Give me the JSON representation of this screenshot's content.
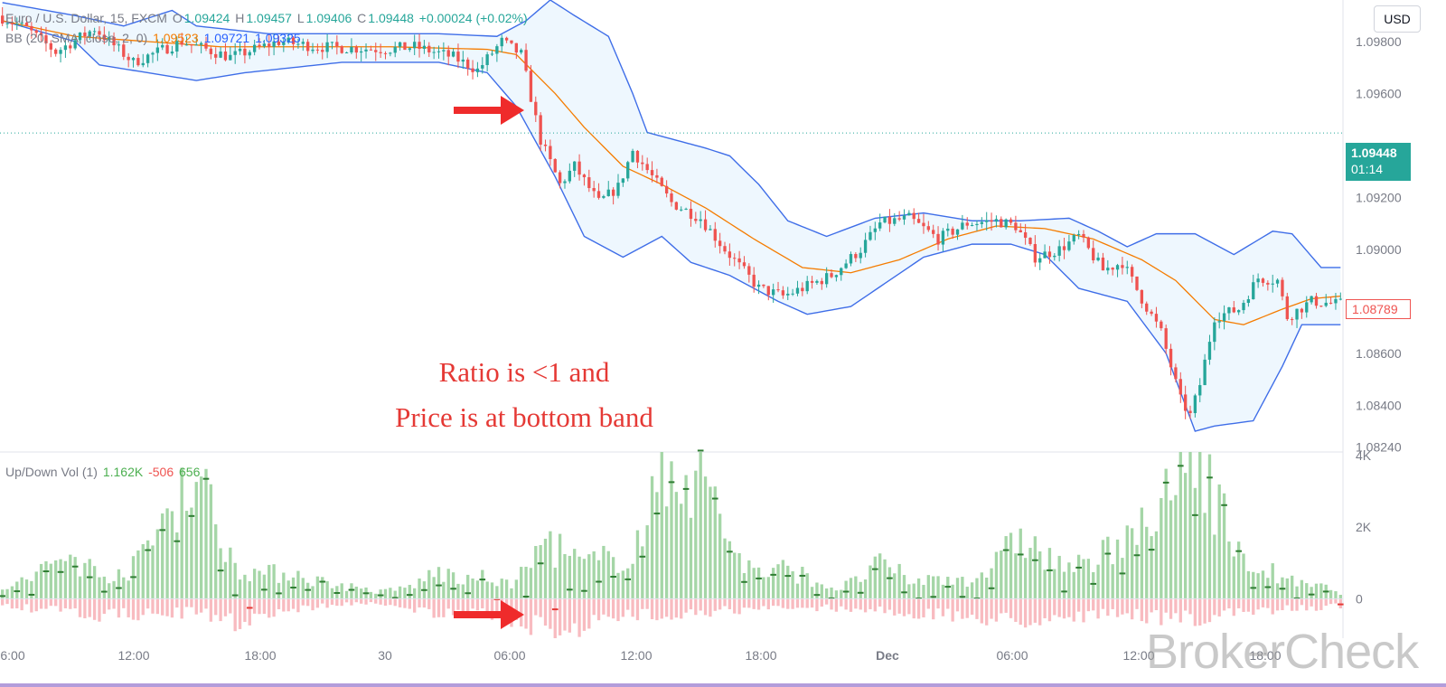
{
  "header": {
    "symbol": "Euro / U.S. Dollar, 15, FXCM",
    "o_label": "O",
    "o_val": "1.09424",
    "h_label": "H",
    "h_val": "1.09457",
    "l_label": "L",
    "l_val": "1.09406",
    "c_label": "C",
    "c_val": "1.09448",
    "change": "+0.00024 (+0.02%)",
    "bb_label": "BB (20, SMA, close, 2, 0)",
    "bb_basis": "1.09523",
    "bb_upper": "1.09721",
    "bb_lower": "1.09325"
  },
  "volume_header": {
    "label": "Up/Down Vol (1)",
    "up": "1.162K",
    "down": "-506",
    "delta": "656"
  },
  "currency_button": "USD",
  "price_tags": {
    "current_price": "1.09448",
    "countdown": "01:14",
    "last_marker": "1.08789"
  },
  "annotation": {
    "line1": "Ratio is <1 and",
    "line2": "Price is at bottom band"
  },
  "watermark": "BrokerCheck",
  "colors": {
    "up": "#26a69a",
    "down": "#ef5350",
    "bb_band": "#3f6ee8",
    "bb_basis": "#f57c00",
    "arrow": "#ef2b2b",
    "vol_up": "#a5d6a7",
    "vol_down": "#f8bbc0"
  },
  "chart_data": [
    {
      "type": "candlestick",
      "title": "Euro / U.S. Dollar, 15, FXCM",
      "y_ticks": [
        "1.09800",
        "1.09600",
        "1.09200",
        "1.09000",
        "1.08600",
        "1.08400",
        "1.08240"
      ],
      "ylim": [
        1.0822,
        1.0996
      ],
      "x_ticks": [
        "6:00",
        "12:00",
        "18:00",
        "30",
        "06:00",
        "12:00",
        "18:00",
        "Dec",
        "06:00",
        "12:00",
        "18:00"
      ],
      "price_anchors": [
        [
          0,
          1.099
        ],
        [
          6,
          1.0985
        ],
        [
          12,
          1.0976
        ],
        [
          20,
          1.0985
        ],
        [
          28,
          1.0972
        ],
        [
          38,
          1.098
        ],
        [
          48,
          1.0974
        ],
        [
          58,
          1.098
        ],
        [
          66,
          1.0978
        ],
        [
          80,
          1.0977
        ],
        [
          86,
          1.0978
        ],
        [
          94,
          1.0974
        ],
        [
          99,
          1.0969
        ],
        [
          104,
          1.098
        ],
        [
          108,
          1.0975
        ],
        [
          112,
          1.0942
        ],
        [
          116,
          1.0925
        ],
        [
          119,
          1.0932
        ],
        [
          124,
          1.0918
        ],
        [
          128,
          1.0924
        ],
        [
          131,
          1.0938
        ],
        [
          135,
          1.0928
        ],
        [
          139,
          1.0918
        ],
        [
          145,
          1.0912
        ],
        [
          150,
          1.09
        ],
        [
          157,
          1.0885
        ],
        [
          162,
          1.0882
        ],
        [
          166,
          1.0885
        ],
        [
          172,
          1.089
        ],
        [
          178,
          1.09
        ],
        [
          182,
          1.091
        ],
        [
          188,
          1.0912
        ],
        [
          194,
          1.0904
        ],
        [
          200,
          1.091
        ],
        [
          206,
          1.0911
        ],
        [
          210,
          1.0909
        ],
        [
          214,
          1.0897
        ],
        [
          219,
          1.09
        ],
        [
          223,
          1.0905
        ],
        [
          228,
          1.0892
        ],
        [
          232,
          1.0895
        ],
        [
          236,
          1.0881
        ],
        [
          240,
          1.0868
        ],
        [
          244,
          1.0842
        ],
        [
          246,
          1.0836
        ],
        [
          248,
          1.0848
        ],
        [
          251,
          1.0874
        ],
        [
          256,
          1.0877
        ],
        [
          260,
          1.0889
        ],
        [
          264,
          1.0888
        ],
        [
          266,
          1.0874
        ],
        [
          271,
          1.088
        ],
        [
          276,
          1.0879
        ]
      ],
      "bollinger": {
        "upper": [
          [
            0,
            1.0995
          ],
          [
            15,
            1.099
          ],
          [
            25,
            1.0986
          ],
          [
            35,
            1.0992
          ],
          [
            40,
            1.0986
          ],
          [
            55,
            1.0983
          ],
          [
            70,
            1.0983
          ],
          [
            90,
            1.0983
          ],
          [
            102,
            1.0982
          ],
          [
            108,
            1.0988
          ],
          [
            113,
            1.0996
          ],
          [
            118,
            1.099
          ],
          [
            125,
            1.0982
          ],
          [
            130,
            1.096
          ],
          [
            133,
            1.0945
          ],
          [
            137,
            1.0943
          ],
          [
            145,
            1.0939
          ],
          [
            150,
            1.0936
          ],
          [
            156,
            1.0925
          ],
          [
            162,
            1.0911
          ],
          [
            170,
            1.0905
          ],
          [
            180,
            1.0912
          ],
          [
            190,
            1.0914
          ],
          [
            200,
            1.0911
          ],
          [
            210,
            1.0911
          ],
          [
            220,
            1.0912
          ],
          [
            226,
            1.0907
          ],
          [
            232,
            1.0901
          ],
          [
            238,
            1.0906
          ],
          [
            246,
            1.0906
          ],
          [
            254,
            1.0898
          ],
          [
            262,
            1.0907
          ],
          [
            266,
            1.0906
          ],
          [
            272,
            1.0893
          ],
          [
            276,
            1.0893
          ]
        ],
        "basis": [
          [
            0,
            1.0988
          ],
          [
            15,
            1.0982
          ],
          [
            30,
            1.098
          ],
          [
            45,
            1.0978
          ],
          [
            60,
            1.0978
          ],
          [
            80,
            1.0978
          ],
          [
            100,
            1.0977
          ],
          [
            106,
            1.0975
          ],
          [
            114,
            1.096
          ],
          [
            120,
            1.0947
          ],
          [
            128,
            1.0932
          ],
          [
            136,
            1.0925
          ],
          [
            145,
            1.0916
          ],
          [
            155,
            1.0904
          ],
          [
            165,
            1.0893
          ],
          [
            175,
            1.0891
          ],
          [
            185,
            1.0896
          ],
          [
            195,
            1.0904
          ],
          [
            205,
            1.0909
          ],
          [
            215,
            1.0908
          ],
          [
            225,
            1.0904
          ],
          [
            235,
            1.0896
          ],
          [
            242,
            1.0888
          ],
          [
            250,
            1.0873
          ],
          [
            256,
            1.0871
          ],
          [
            264,
            1.0877
          ],
          [
            270,
            1.0881
          ],
          [
            276,
            1.0882
          ]
        ],
        "lower": [
          [
            0,
            1.0988
          ],
          [
            15,
            1.098
          ],
          [
            20,
            1.0971
          ],
          [
            30,
            1.0968
          ],
          [
            40,
            1.0965
          ],
          [
            50,
            1.0968
          ],
          [
            70,
            1.0972
          ],
          [
            90,
            1.0972
          ],
          [
            100,
            1.0968
          ],
          [
            106,
            1.0955
          ],
          [
            114,
            1.0928
          ],
          [
            120,
            1.0905
          ],
          [
            128,
            1.0897
          ],
          [
            136,
            1.0905
          ],
          [
            142,
            1.0895
          ],
          [
            150,
            1.089
          ],
          [
            160,
            1.088
          ],
          [
            166,
            1.0875
          ],
          [
            175,
            1.0878
          ],
          [
            190,
            1.0897
          ],
          [
            200,
            1.0902
          ],
          [
            208,
            1.0902
          ],
          [
            215,
            1.0898
          ],
          [
            222,
            1.0885
          ],
          [
            232,
            1.088
          ],
          [
            240,
            1.086
          ],
          [
            246,
            1.083
          ],
          [
            250,
            1.0832
          ],
          [
            258,
            1.0834
          ],
          [
            264,
            1.0855
          ],
          [
            268,
            1.0871
          ],
          [
            276,
            1.0871
          ]
        ]
      },
      "current_price": 1.09448,
      "last_marker": 1.08789,
      "arrow_index": 103
    },
    {
      "type": "bar",
      "title": "Up/Down Vol (1)",
      "y_ticks": [
        "4K",
        "2K",
        "0"
      ],
      "ylim": [
        -1100,
        4100
      ],
      "up_anchors": [
        [
          0,
          300
        ],
        [
          6,
          600
        ],
        [
          10,
          1000
        ],
        [
          14,
          1300
        ],
        [
          20,
          700
        ],
        [
          27,
          900
        ],
        [
          32,
          2000
        ],
        [
          36,
          3300
        ],
        [
          40,
          3600
        ],
        [
          44,
          2300
        ],
        [
          48,
          1000
        ],
        [
          54,
          700
        ],
        [
          60,
          800
        ],
        [
          66,
          500
        ],
        [
          72,
          350
        ],
        [
          78,
          200
        ],
        [
          84,
          350
        ],
        [
          90,
          800
        ],
        [
          96,
          500
        ],
        [
          100,
          650
        ],
        [
          104,
          400
        ],
        [
          108,
          800
        ],
        [
          112,
          1800
        ],
        [
          116,
          1300
        ],
        [
          120,
          1000
        ],
        [
          126,
          1200
        ],
        [
          130,
          1400
        ],
        [
          134,
          2700
        ],
        [
          138,
          4000
        ],
        [
          142,
          3900
        ],
        [
          146,
          3300
        ],
        [
          150,
          1700
        ],
        [
          154,
          900
        ],
        [
          158,
          700
        ],
        [
          162,
          900
        ],
        [
          168,
          500
        ],
        [
          172,
          300
        ],
        [
          176,
          500
        ],
        [
          180,
          1000
        ],
        [
          184,
          800
        ],
        [
          188,
          500
        ],
        [
          194,
          600
        ],
        [
          200,
          600
        ],
        [
          206,
          1100
        ],
        [
          210,
          2000
        ],
        [
          214,
          1300
        ],
        [
          218,
          1000
        ],
        [
          224,
          900
        ],
        [
          228,
          1400
        ],
        [
          232,
          2300
        ],
        [
          236,
          1800
        ],
        [
          240,
          2700
        ],
        [
          244,
          4000
        ],
        [
          248,
          4200
        ],
        [
          252,
          2300
        ],
        [
          256,
          1000
        ],
        [
          260,
          900
        ],
        [
          264,
          600
        ],
        [
          268,
          400
        ],
        [
          272,
          350
        ],
        [
          276,
          200
        ]
      ],
      "down_anchors": [
        [
          0,
          -200
        ],
        [
          10,
          -350
        ],
        [
          20,
          -500
        ],
        [
          30,
          -450
        ],
        [
          40,
          -400
        ],
        [
          48,
          -700
        ],
        [
          56,
          -400
        ],
        [
          64,
          -250
        ],
        [
          70,
          -150
        ],
        [
          80,
          -150
        ],
        [
          88,
          -400
        ],
        [
          94,
          -550
        ],
        [
          100,
          -400
        ],
        [
          106,
          -700
        ],
        [
          112,
          -900
        ],
        [
          118,
          -850
        ],
        [
          124,
          -650
        ],
        [
          130,
          -500
        ],
        [
          136,
          -450
        ],
        [
          142,
          -400
        ],
        [
          150,
          -350
        ],
        [
          160,
          -300
        ],
        [
          170,
          -250
        ],
        [
          180,
          -350
        ],
        [
          190,
          -450
        ],
        [
          200,
          -550
        ],
        [
          210,
          -650
        ],
        [
          220,
          -500
        ],
        [
          230,
          -500
        ],
        [
          240,
          -550
        ],
        [
          248,
          -600
        ],
        [
          256,
          -400
        ],
        [
          264,
          -300
        ],
        [
          272,
          -250
        ],
        [
          276,
          -200
        ]
      ],
      "arrow_index": 103
    }
  ]
}
